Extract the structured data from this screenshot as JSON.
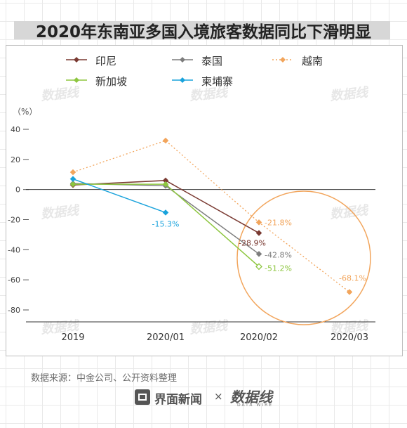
{
  "title": "2020年东南亚多国入境旅客数据同比下滑明显",
  "source": "数据来源：中金公司、公开资料整理",
  "brand_left": "界面新闻",
  "brand_times": "×",
  "brand_right": "数据线",
  "brand_right_sub": "DATA WIRE",
  "watermark": "数据线",
  "chart_data": {
    "type": "line",
    "categories": [
      "2019",
      "2020/01",
      "2020/02",
      "2020/03"
    ],
    "ylabel": "（%）",
    "ylim": [
      -80,
      40
    ],
    "yticks": [
      "40",
      "20",
      "0",
      "-20",
      "-40",
      "-60",
      "-80"
    ],
    "legend_position": "top",
    "series": [
      {
        "name": "印尼",
        "color": "#7a3a32",
        "marker": "diamond",
        "dash": "solid",
        "values": [
          3,
          6,
          -28.9,
          null
        ]
      },
      {
        "name": "泰国",
        "color": "#7d7d7d",
        "marker": "diamond",
        "dash": "solid",
        "values": [
          4,
          2.5,
          -42.8,
          null
        ]
      },
      {
        "name": "越南",
        "color": "#f2a55c",
        "marker": "diamond",
        "dash": "dotted",
        "values": [
          11.5,
          32.5,
          -21.8,
          -68.1
        ]
      },
      {
        "name": "新加坡",
        "color": "#8dc63f",
        "marker": "diamond",
        "dash": "solid",
        "values": [
          3.5,
          3.5,
          -51.2,
          null
        ]
      },
      {
        "name": "柬埔寨",
        "color": "#1aa3dc",
        "marker": "diamond",
        "dash": "solid",
        "values": [
          7,
          -15.3,
          null,
          null
        ]
      }
    ],
    "data_labels": [
      {
        "series": "柬埔寨",
        "category": "2020/01",
        "text": "-15.3%"
      },
      {
        "series": "越南",
        "category": "2020/02",
        "text": "-21.8%"
      },
      {
        "series": "印尼",
        "category": "2020/02",
        "text": "-28.9%"
      },
      {
        "series": "泰国",
        "category": "2020/02",
        "text": "-42.8%"
      },
      {
        "series": "新加坡",
        "category": "2020/02",
        "text": "-51.2%"
      },
      {
        "series": "越南",
        "category": "2020/03",
        "text": "-68.1%"
      }
    ],
    "highlight_circle_color": "#f2a55c"
  }
}
